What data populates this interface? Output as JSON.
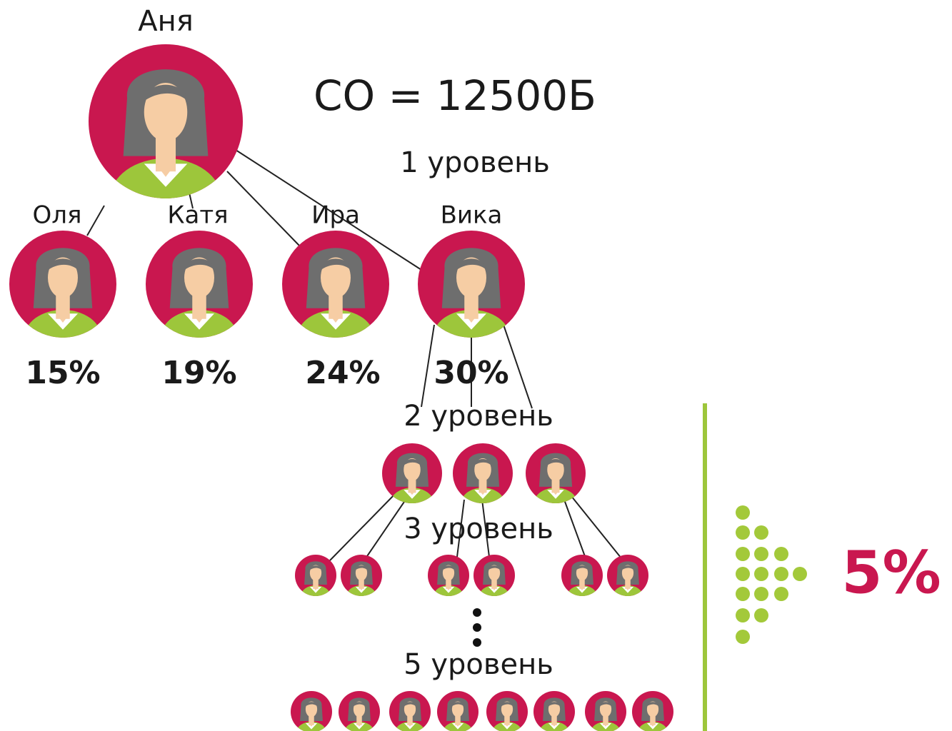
{
  "root": {
    "name": "Аня"
  },
  "formula": "СО = 12500Б",
  "levels": [
    "1 уровень",
    "2 уровень",
    "3 уровень",
    "5 уровень"
  ],
  "nodes": [
    {
      "name": "Оля",
      "percent": "15%"
    },
    {
      "name": "Катя",
      "percent": "19%"
    },
    {
      "name": "Ира",
      "percent": "24%"
    },
    {
      "name": "Вика",
      "percent": "30%"
    }
  ],
  "deep_percent": "5%"
}
